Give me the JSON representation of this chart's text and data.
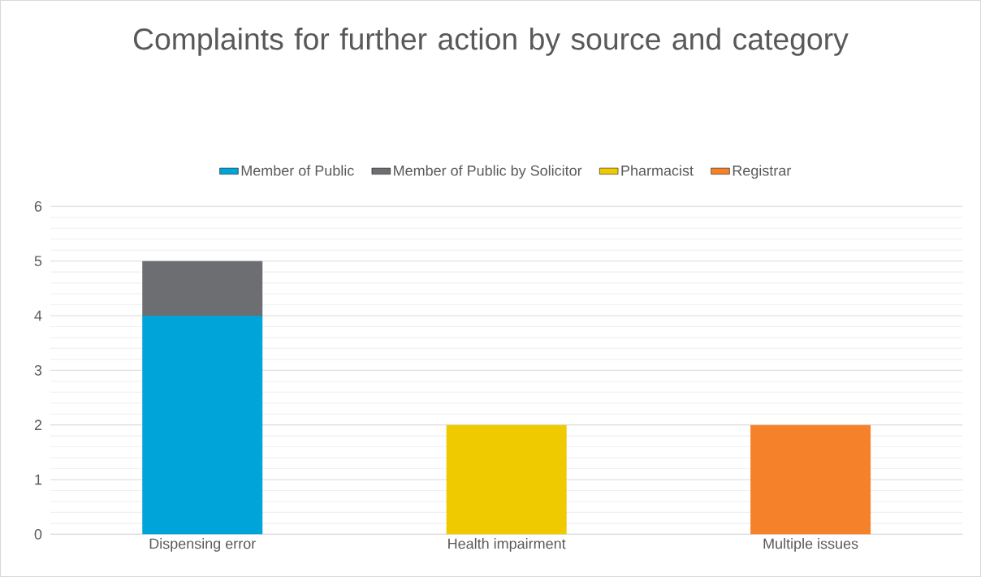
{
  "chart_data": {
    "type": "bar",
    "title": "Complaints for further action by source and category",
    "categories": [
      "Dispensing error",
      "Health impairment",
      "Multiple issues"
    ],
    "stacked": true,
    "series": [
      {
        "name": "Member of Public",
        "color": "#00a4d9",
        "values": [
          4,
          null,
          null
        ]
      },
      {
        "name": "Member of Public by Solicitor",
        "color": "#6d6e71",
        "values": [
          1,
          null,
          null
        ]
      },
      {
        "name": "Pharmacist",
        "color": "#f0ca00",
        "values": [
          null,
          2,
          null
        ]
      },
      {
        "name": "Registrar",
        "color": "#f5822a",
        "values": [
          null,
          null,
          2
        ]
      }
    ],
    "ylim": [
      0,
      6
    ],
    "yticks": [
      0,
      {
        "value": 0.2,
        "label": null
      },
      {
        "value": 0.4,
        "label": null
      },
      {
        "value": 0.6,
        "label": null
      },
      {
        "value": 0.8,
        "label": null
      },
      1,
      {
        "value": 1.2,
        "label": null
      },
      {
        "value": 1.4,
        "label": null
      },
      {
        "value": 1.6,
        "label": null
      },
      {
        "value": 1.8,
        "label": null
      },
      2,
      {
        "value": 2.2,
        "label": null
      },
      {
        "value": 2.4,
        "label": null
      },
      {
        "value": 2.6,
        "label": null
      },
      {
        "value": 2.8,
        "label": null
      },
      3,
      {
        "value": 3.2,
        "label": null
      },
      {
        "value": 3.4,
        "label": null
      },
      {
        "value": 3.6,
        "label": null
      },
      {
        "value": 3.8,
        "label": null
      },
      4,
      {
        "value": 4.2,
        "label": null
      },
      {
        "value": 4.4,
        "label": null
      },
      {
        "value": 4.6,
        "label": null
      },
      {
        "value": 4.8,
        "label": null
      },
      5,
      {
        "value": 5.2,
        "label": null
      },
      {
        "value": 5.4,
        "label": null
      },
      {
        "value": 5.6,
        "label": null
      },
      {
        "value": 5.8,
        "label": null
      },
      6
    ],
    "grid": "y",
    "legend": "top"
  }
}
